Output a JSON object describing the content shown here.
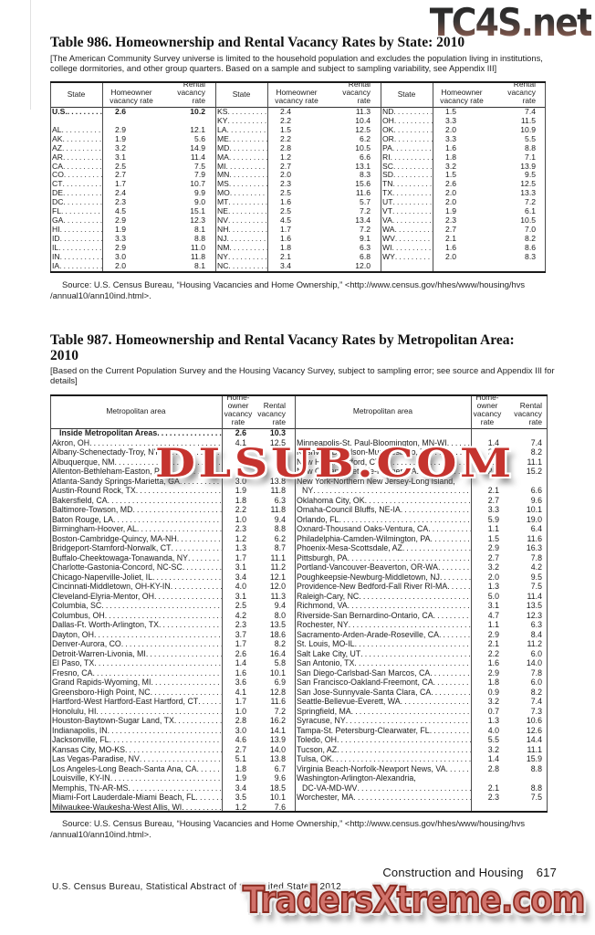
{
  "watermarks": {
    "top": "TC4S.net",
    "middle": "DLSUB.COM",
    "bottom": "TradersXtreme.com"
  },
  "source": {
    "line1": "Source: U.S. Census Bureau, “Housing Vacancies and Home Ownership,” <http://www.census.gov/hhes/www/housing/hvs",
    "line2": "/annual10/ann10ind.html>."
  },
  "footer": {
    "section": "Construction and Housing",
    "page": "617",
    "credit": "U.S. Census Bureau, Statistical Abstract of the United States: 2012"
  },
  "table986": {
    "title": "Table 986. Homeownership and Rental Vacancy Rates by State: 2010",
    "note": "[The American Community Survey universe is limited to the household population and excludes the population living in institutions, college dormitories, and other group quarters. Based on a sample and subject to sampling variability, see Appendix III]",
    "headers": {
      "state": "State",
      "homeowner": "Homeowner vacancy rate",
      "rental": "Rental vacancy rate"
    },
    "columns": [
      [
        {
          "n": "U.S.",
          "h": "2.6",
          "r": "10.2",
          "b": 1
        },
        {
          "n": "",
          "h": "",
          "r": ""
        },
        {
          "n": "AL",
          "h": "2.9",
          "r": "12.1"
        },
        {
          "n": "AK",
          "h": "1.9",
          "r": "5.6"
        },
        {
          "n": "AZ",
          "h": "3.2",
          "r": "14.9"
        },
        {
          "n": "AR",
          "h": "3.1",
          "r": "11.4"
        },
        {
          "n": "CA",
          "h": "2.5",
          "r": "7.5"
        },
        {
          "n": "CO",
          "h": "2.7",
          "r": "7.9"
        },
        {
          "n": "CT",
          "h": "1.7",
          "r": "10.7"
        },
        {
          "n": "DE",
          "h": "2.4",
          "r": "9.9"
        },
        {
          "n": "DC",
          "h": "2.3",
          "r": "9.0"
        },
        {
          "n": "FL",
          "h": "4.5",
          "r": "15.1"
        },
        {
          "n": "GA",
          "h": "2.9",
          "r": "12.3"
        },
        {
          "n": "HI",
          "h": "1.9",
          "r": "8.1"
        },
        {
          "n": "ID",
          "h": "3.3",
          "r": "8.8"
        },
        {
          "n": "IL",
          "h": "2.9",
          "r": "11.0"
        },
        {
          "n": "IN",
          "h": "3.0",
          "r": "11.8"
        },
        {
          "n": "IA",
          "h": "2.0",
          "r": "8.1"
        }
      ],
      [
        {
          "n": "KS",
          "h": "2.4",
          "r": "11.3"
        },
        {
          "n": "KY",
          "h": "2.2",
          "r": "10.4"
        },
        {
          "n": "LA",
          "h": "1.5",
          "r": "12.5"
        },
        {
          "n": "ME",
          "h": "2.2",
          "r": "6.2"
        },
        {
          "n": "MD",
          "h": "2.8",
          "r": "10.5"
        },
        {
          "n": "MA",
          "h": "1.2",
          "r": "6.6"
        },
        {
          "n": "MI",
          "h": "2.7",
          "r": "13.1"
        },
        {
          "n": "MN",
          "h": "2.0",
          "r": "8.3"
        },
        {
          "n": "MS",
          "h": "2.3",
          "r": "15.6"
        },
        {
          "n": "MO",
          "h": "2.5",
          "r": "11.6"
        },
        {
          "n": "MT",
          "h": "1.6",
          "r": "5.7"
        },
        {
          "n": "NE",
          "h": "2.5",
          "r": "7.2"
        },
        {
          "n": "NV",
          "h": "4.5",
          "r": "13.4"
        },
        {
          "n": "NH",
          "h": "1.7",
          "r": "7.2"
        },
        {
          "n": "NJ",
          "h": "1.6",
          "r": "9.1"
        },
        {
          "n": "NM",
          "h": "1.8",
          "r": "6.3"
        },
        {
          "n": "NY",
          "h": "2.1",
          "r": "6.8"
        },
        {
          "n": "NC",
          "h": "3.4",
          "r": "12.0"
        }
      ],
      [
        {
          "n": "ND",
          "h": "1.5",
          "r": "7.4"
        },
        {
          "n": "OH",
          "h": "3.3",
          "r": "11.5"
        },
        {
          "n": "OK",
          "h": "2.0",
          "r": "10.9"
        },
        {
          "n": "OR",
          "h": "3.3",
          "r": "5.5"
        },
        {
          "n": "PA",
          "h": "1.6",
          "r": "8.8"
        },
        {
          "n": "RI",
          "h": "1.8",
          "r": "7.1"
        },
        {
          "n": "SC",
          "h": "3.2",
          "r": "13.9"
        },
        {
          "n": "SD",
          "h": "1.5",
          "r": "9.5"
        },
        {
          "n": "TN",
          "h": "2.6",
          "r": "12.5"
        },
        {
          "n": "TX",
          "h": "2.0",
          "r": "13.3"
        },
        {
          "n": "UT",
          "h": "2.0",
          "r": "7.2"
        },
        {
          "n": "VT",
          "h": "1.9",
          "r": "6.1"
        },
        {
          "n": "VA",
          "h": "2.3",
          "r": "10.5"
        },
        {
          "n": "WA",
          "h": "2.7",
          "r": "7.0"
        },
        {
          "n": "WV",
          "h": "2.1",
          "r": "8.2"
        },
        {
          "n": "WI",
          "h": "1.6",
          "r": "8.6"
        },
        {
          "n": "WY",
          "h": "2.0",
          "r": "8.3"
        },
        {
          "n": "",
          "h": "",
          "r": ""
        }
      ]
    ]
  },
  "table987": {
    "title_line1": "Table 987. Homeownership and Rental Vacancy Rates by Metropolitan Area:",
    "title_line2": "2010",
    "note": "[Based on the Current Population Survey and the Housing Vacancy Survey, subject to sampling error; see source and Appendix III for details]",
    "headers": {
      "area": "Metropolitan area",
      "homeowner": "Home-owner vacancy rate",
      "rental": "Rental vacancy rate"
    },
    "left": [
      {
        "n": "Inside Metropolitan Areas",
        "h": "2.6",
        "r": "10.3",
        "b": 1
      },
      {
        "n": "Akron, OH",
        "h": "4.1",
        "r": "12.5"
      },
      {
        "n": "Albany-Schenectady-Troy, NY",
        "h": "",
        "r": ""
      },
      {
        "n": "Albuquerque, NM",
        "h": "",
        "r": ""
      },
      {
        "n": "Allenton-Bethleham-Easton, PA",
        "h": "",
        "r": ""
      },
      {
        "n": "Atlanta-Sandy Springs-Marietta, GA",
        "h": "3.0",
        "r": "13.8"
      },
      {
        "n": "Austin-Round Rock, TX",
        "h": "1.9",
        "r": "11.8"
      },
      {
        "n": "Bakersfield, CA",
        "h": "1.8",
        "r": "6.3"
      },
      {
        "n": "Baltimore-Towson, MD",
        "h": "2.2",
        "r": "11.8"
      },
      {
        "n": "Baton Rouge, LA",
        "h": "1.0",
        "r": "9.4"
      },
      {
        "n": "Birmingham-Hoover, AL",
        "h": "2.3",
        "r": "8.8"
      },
      {
        "n": "Boston-Cambridge-Quincy, MA-NH",
        "h": "1.2",
        "r": "6.2"
      },
      {
        "n": "Bridgeport-Stamford-Norwalk, CT",
        "h": "1.3",
        "r": "8.7"
      },
      {
        "n": "Buffalo-Cheektowaga-Tonawanda, NY",
        "h": "1.7",
        "r": "11.1"
      },
      {
        "n": "Charlotte-Gastonia-Concord, NC-SC",
        "h": "3.1",
        "r": "11.2"
      },
      {
        "n": "Chicago-Naperville-Joliet, IL",
        "h": "3.4",
        "r": "12.1"
      },
      {
        "n": "Cincinnati-Middletown, OH-KY-IN",
        "h": "4.0",
        "r": "12.0"
      },
      {
        "n": "Cleveland-Elyria-Mentor, OH",
        "h": "3.1",
        "r": "11.3"
      },
      {
        "n": "Columbia, SC",
        "h": "2.5",
        "r": "9.4"
      },
      {
        "n": "Columbus, OH",
        "h": "4.2",
        "r": "8.0"
      },
      {
        "n": "Dallas-Ft. Worth-Arlington, TX",
        "h": "2.3",
        "r": "13.5"
      },
      {
        "n": "Dayton, OH",
        "h": "3.7",
        "r": "18.6"
      },
      {
        "n": "Denver-Aurora, CO",
        "h": "1.7",
        "r": "8.2"
      },
      {
        "n": "Detroit-Warren-Livonia, MI",
        "h": "2.6",
        "r": "16.4"
      },
      {
        "n": "El Paso, TX",
        "h": "1.4",
        "r": "5.8"
      },
      {
        "n": "Fresno, CA",
        "h": "1.6",
        "r": "10.1"
      },
      {
        "n": "Grand Rapids-Wyoming, MI",
        "h": "3.6",
        "r": "6.9"
      },
      {
        "n": "Greensboro-High Point, NC",
        "h": "4.1",
        "r": "12.8"
      },
      {
        "n": "Hartford-West Hartford-East Hartford, CT",
        "h": "1.7",
        "r": "11.6"
      },
      {
        "n": "Honolulu, HI",
        "h": "1.0",
        "r": "7.2"
      },
      {
        "n": "Houston-Baytown-Sugar Land, TX",
        "h": "2.8",
        "r": "16.2"
      },
      {
        "n": "Indianapolis, IN",
        "h": "3.0",
        "r": "14.1"
      },
      {
        "n": "Jacksonville, FL",
        "h": "4.6",
        "r": "13.9"
      },
      {
        "n": "Kansas City, MO-KS",
        "h": "2.7",
        "r": "14.0"
      },
      {
        "n": "Las Vegas-Paradise, NV",
        "h": "5.1",
        "r": "13.8"
      },
      {
        "n": "Los Angeles-Long Beach-Santa Ana, CA",
        "h": "1.8",
        "r": "6.7"
      },
      {
        "n": "Louisville, KY-IN",
        "h": "1.9",
        "r": "9.6"
      },
      {
        "n": "Memphis, TN-AR-MS",
        "h": "3.4",
        "r": "18.5"
      },
      {
        "n": "Miami-Fort Lauderdale-Miami Beach, FL",
        "h": "3.5",
        "r": "10.1"
      },
      {
        "n": "Milwaukee-Waukesha-West Allis, WI",
        "h": "1.2",
        "r": "7.6"
      }
    ],
    "right": [
      {
        "n": "",
        "h": "",
        "r": ""
      },
      {
        "n": "Minneapolis-St. Paul-Bloomington, MN-WI",
        "h": "1.4",
        "r": "7.4"
      },
      {
        "n": "Nashville-Davidson-Murfreesboro, TN",
        "h": "2.4",
        "r": "8.2"
      },
      {
        "n": "New Haven-Milford, CT",
        "h": "2.6",
        "r": "11.1"
      },
      {
        "n": "New Orleans-Metairie-Kenner, LA",
        "h": "2.6",
        "r": "15.2"
      },
      {
        "n": "New York-Northern New Jersey-Long Island,",
        "h": "",
        "r": "",
        "nd": 1
      },
      {
        "n": "NY",
        "h": "2.1",
        "r": "6.6",
        "i": 1
      },
      {
        "n": "Oklahoma City, OK",
        "h": "2.7",
        "r": "9.6"
      },
      {
        "n": "Omaha-Council Bluffs, NE-IA",
        "h": "3.3",
        "r": "10.1"
      },
      {
        "n": "Orlando, FL",
        "h": "5.9",
        "r": "19.0"
      },
      {
        "n": "Oxnard-Thousand Oaks-Ventura, CA",
        "h": "1.1",
        "r": "6.4"
      },
      {
        "n": "Philadelphia-Camden-Wilmington, PA",
        "h": "1.5",
        "r": "11.6"
      },
      {
        "n": "Phoenix-Mesa-Scottsdale, AZ",
        "h": "2.9",
        "r": "16.3"
      },
      {
        "n": "Pittsburgh, PA",
        "h": "2.7",
        "r": "7.8"
      },
      {
        "n": "Portland-Vancouver-Beaverton, OR-WA",
        "h": "3.2",
        "r": "4.2"
      },
      {
        "n": "Poughkeepsie-Newburg-Middletown, NJ",
        "h": "2.0",
        "r": "9.5"
      },
      {
        "n": "Providence-New Bedford-Fall River RI-MA",
        "h": "1.3",
        "r": "7.5"
      },
      {
        "n": "Raleigh-Cary, NC",
        "h": "5.0",
        "r": "11.4"
      },
      {
        "n": "Richmond, VA",
        "h": "3.1",
        "r": "13.5"
      },
      {
        "n": "Riverside-San Bernardino-Ontario, CA",
        "h": "4.7",
        "r": "12.3"
      },
      {
        "n": "Rochester, NY",
        "h": "1.1",
        "r": "6.3"
      },
      {
        "n": "Sacramento-Arden-Arade-Roseville, CA",
        "h": "2.9",
        "r": "8.4"
      },
      {
        "n": "St. Louis, MO-IL",
        "h": "2.1",
        "r": "11.2"
      },
      {
        "n": "Salt Lake City, UT",
        "h": "2.2",
        "r": "6.0"
      },
      {
        "n": "San Antonio, TX",
        "h": "1.6",
        "r": "14.0"
      },
      {
        "n": "San Diego-Carlsbad-San Marcos, CA",
        "h": "2.9",
        "r": "7.8"
      },
      {
        "n": "San Francisco-Oakland-Freemont, CA",
        "h": "1.8",
        "r": "6.0"
      },
      {
        "n": "San Jose-Sunnyvale-Santa Clara, CA",
        "h": "0.9",
        "r": "8.2"
      },
      {
        "n": "Seattle-Bellevue-Everett, WA",
        "h": "3.2",
        "r": "7.4"
      },
      {
        "n": "Springfield, MA",
        "h": "0.7",
        "r": "7.3"
      },
      {
        "n": "Syracuse, NY",
        "h": "1.3",
        "r": "10.6"
      },
      {
        "n": "Tampa-St. Petersburg-Clearwater, FL",
        "h": "4.0",
        "r": "12.6"
      },
      {
        "n": "Toledo, OH",
        "h": "5.5",
        "r": "14.4"
      },
      {
        "n": "Tucson, AZ",
        "h": "3.2",
        "r": "11.1"
      },
      {
        "n": "Tulsa, OK",
        "h": "1.4",
        "r": "15.9"
      },
      {
        "n": "Virginia Beach-Norfolk-Newport News, VA",
        "h": "2.8",
        "r": "8.8"
      },
      {
        "n": "Washington-Arlington-Alexandria,",
        "h": "",
        "r": "",
        "nd": 1
      },
      {
        "n": "DC-VA-MD-WV",
        "h": "2.1",
        "r": "8.8",
        "i": 1
      },
      {
        "n": "Worchester, MA",
        "h": "2.3",
        "r": "7.5"
      }
    ]
  }
}
